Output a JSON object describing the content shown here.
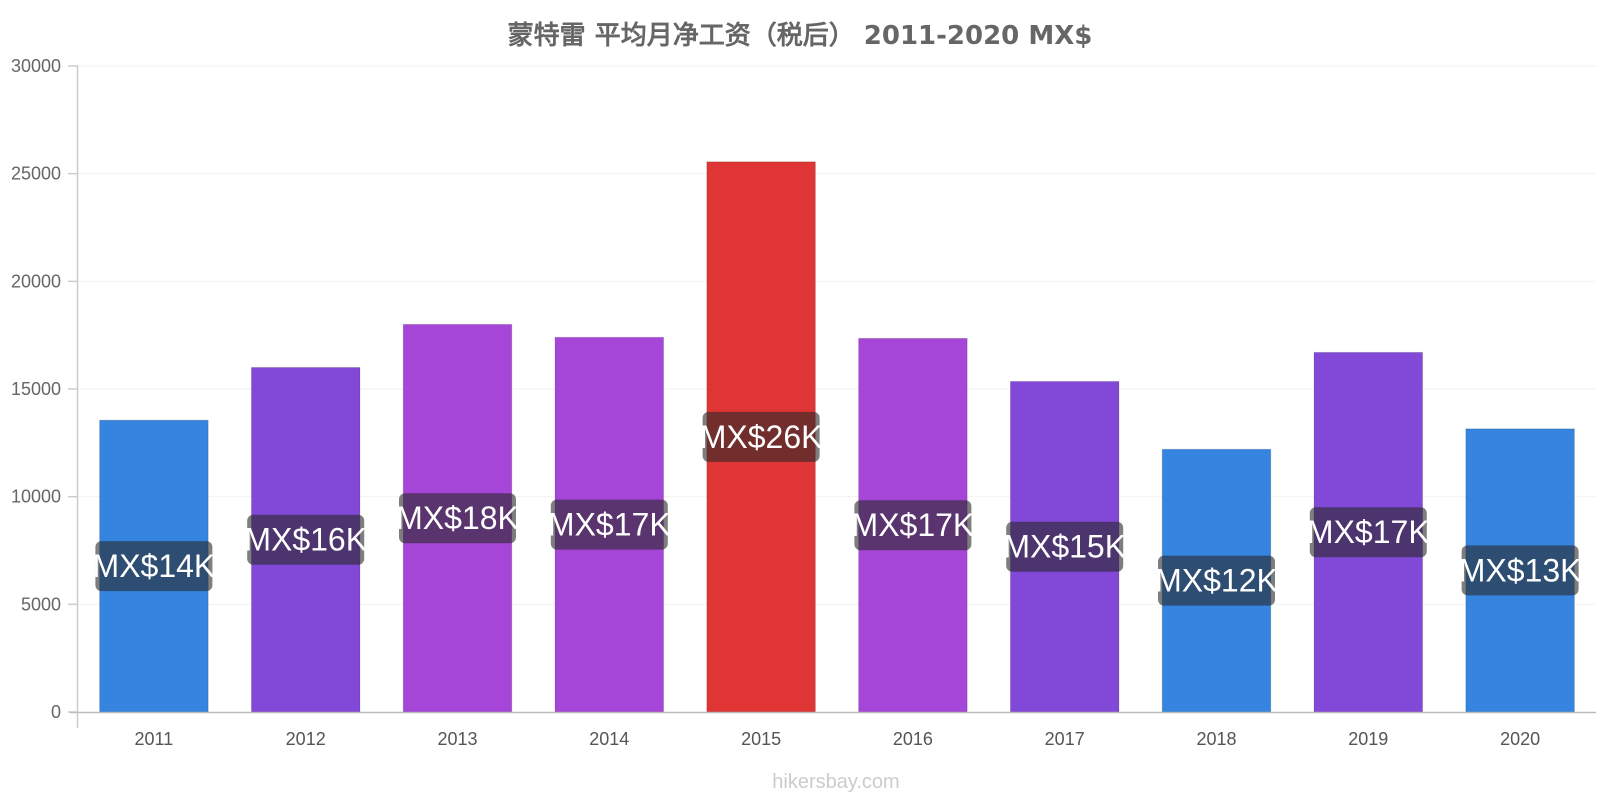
{
  "chart_data": {
    "type": "bar",
    "title": "蒙特雷 平均月净工资（税后） 2011-2020 MX$",
    "categories": [
      "2011",
      "2012",
      "2013",
      "2014",
      "2015",
      "2016",
      "2017",
      "2018",
      "2019",
      "2020"
    ],
    "values": [
      13550,
      16000,
      18000,
      17400,
      25550,
      17350,
      15350,
      12200,
      16700,
      13150
    ],
    "data_labels": [
      "MX$14K",
      "MX$16K",
      "MX$18K",
      "MX$17K",
      "MX$26K",
      "MX$17K",
      "MX$15K",
      "MX$12K",
      "MX$17K",
      "MX$13K"
    ],
    "bar_colors": [
      "#3584e0",
      "#8248d8",
      "#a646d8",
      "#a646d8",
      "#e03535",
      "#a646d8",
      "#8248d8",
      "#3584e0",
      "#8248d8",
      "#3584e0"
    ],
    "ylim": [
      0,
      30000
    ],
    "yticks": [
      "0",
      "5000",
      "10000",
      "15000",
      "20000",
      "25000",
      "30000"
    ],
    "grid": true,
    "source": "hikersbay.com"
  }
}
